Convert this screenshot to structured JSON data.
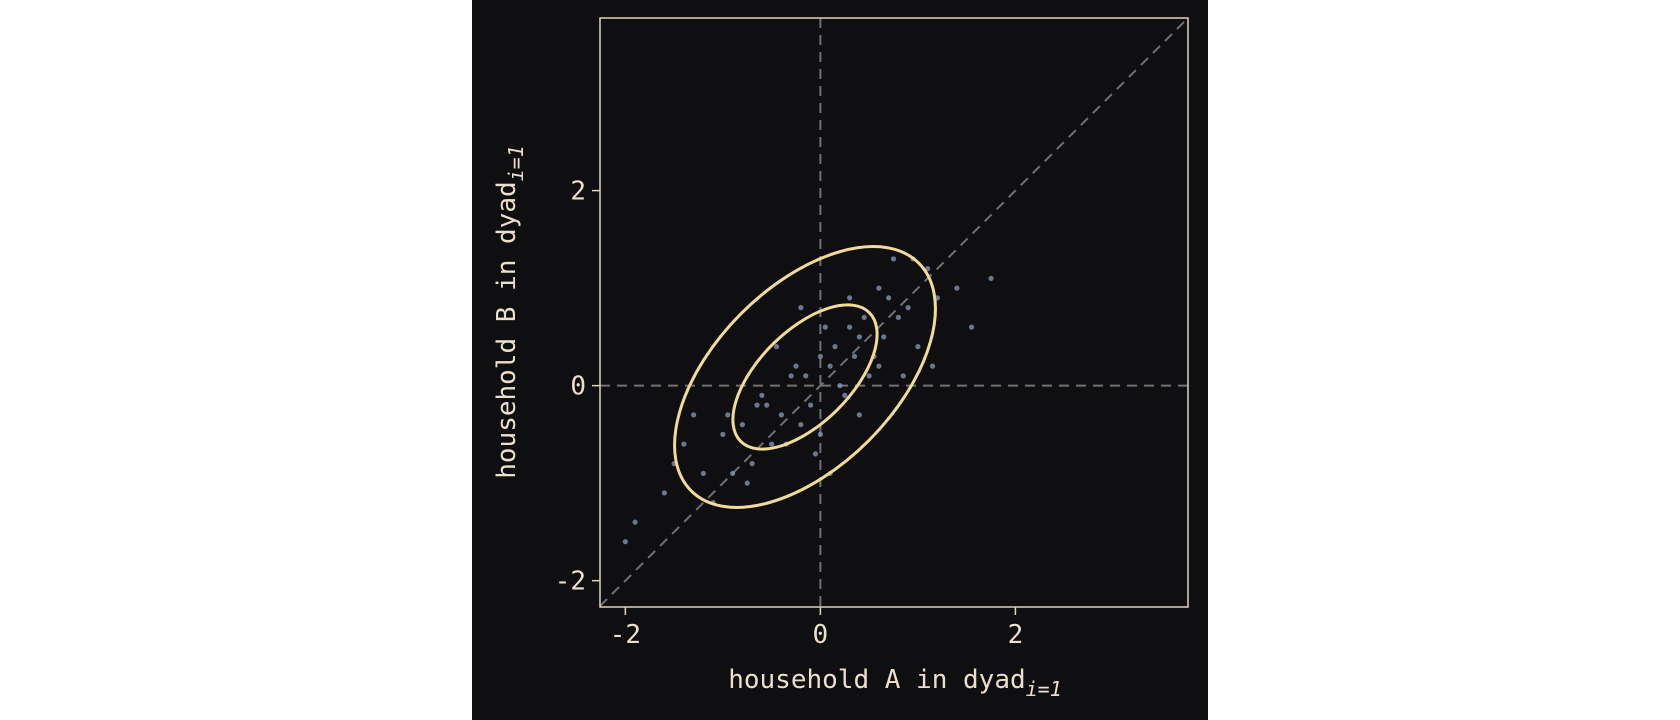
{
  "chart_data": {
    "type": "scatter",
    "x_label": "household A in dyad",
    "x_label_subscript": "i=1",
    "y_label": "household B in dyad",
    "y_label_subscript": "i=1",
    "xlim": [
      -2.26,
      3.77
    ],
    "ylim": [
      -2.27,
      3.77
    ],
    "xticks": [
      -2,
      0,
      2
    ],
    "yticks": [
      -2,
      0,
      2
    ],
    "series": [
      {
        "color": "#8a9bb8",
        "x": [
          -1.2,
          -0.8,
          -0.5,
          -0.3,
          -0.1,
          0.0,
          0.2,
          0.4,
          0.6,
          0.9,
          1.2,
          -1.6,
          -1.0,
          -0.6,
          -0.2,
          0.1,
          0.3,
          0.5,
          0.8,
          1.0,
          -0.9,
          -0.4,
          0.0,
          0.35,
          0.7,
          -1.4,
          -0.7,
          -0.25,
          0.15,
          0.55,
          1.1,
          -0.55,
          -0.15,
          0.25,
          0.45,
          -1.1,
          -0.35,
          0.05,
          0.65,
          1.4,
          -1.9,
          -1.3,
          -0.45,
          0.75,
          1.55,
          -0.05,
          -0.65,
          0.3,
          -0.95,
          0.85,
          1.75,
          -2.0,
          1.15,
          -0.2,
          0.4,
          -0.75,
          0.6,
          -1.5,
          0.95,
          0.1
        ],
        "values": [
          -0.9,
          -0.4,
          -0.6,
          0.1,
          -0.2,
          0.3,
          0.0,
          0.5,
          0.2,
          0.8,
          0.9,
          -1.1,
          -0.5,
          -0.1,
          -0.4,
          0.2,
          0.6,
          0.1,
          0.7,
          0.4,
          -0.9,
          -0.3,
          -0.5,
          0.3,
          0.9,
          -0.6,
          -0.8,
          0.2,
          0.4,
          0.3,
          1.2,
          -0.2,
          0.1,
          -0.1,
          0.7,
          -1.2,
          -0.6,
          0.6,
          0.5,
          1.0,
          -1.4,
          -0.3,
          0.4,
          1.3,
          0.6,
          -0.7,
          -0.2,
          0.9,
          -0.3,
          0.1,
          1.1,
          -1.6,
          0.2,
          0.8,
          -0.3,
          -1.0,
          1.0,
          -0.8,
          1.3,
          -0.9
        ]
      }
    ]
  }
}
